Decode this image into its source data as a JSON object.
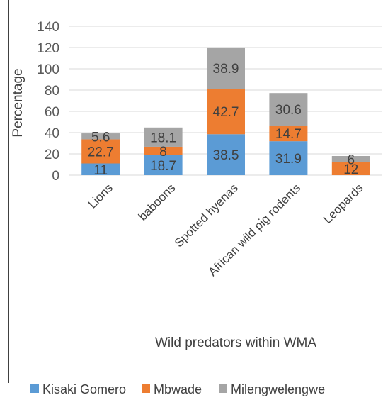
{
  "chart_data": {
    "type": "bar",
    "stacked": true,
    "categories": [
      "Lions",
      "baboons",
      "Spotted hyenas",
      "African wild pig rodents",
      "Leopards"
    ],
    "series": [
      {
        "name": "Kisaki Gomero",
        "color": "#5B9BD5",
        "values": [
          11,
          18.7,
          38.5,
          31.9,
          null
        ],
        "labels": [
          "11",
          "18.7",
          "38.5",
          "31.9",
          ""
        ]
      },
      {
        "name": "Mbwade",
        "color": "#ED7D31",
        "values": [
          22.7,
          8,
          42.7,
          14.7,
          12
        ],
        "labels": [
          "22.7",
          "8",
          "42.7",
          "14.7",
          "12"
        ]
      },
      {
        "name": "Milengwelengwe",
        "color": "#A5A5A5",
        "values": [
          5.6,
          18.1,
          38.9,
          30.6,
          6
        ],
        "labels": [
          "5.6",
          "18.1",
          "38.9",
          "30.6",
          "6"
        ]
      }
    ],
    "title": "",
    "xlabel": "Wild predators within WMA",
    "ylabel": "Percentage",
    "ylim": [
      0,
      140
    ],
    "yticks": [
      0,
      20,
      40,
      60,
      80,
      100,
      120,
      140
    ],
    "grid": true,
    "legend": "bottom"
  }
}
